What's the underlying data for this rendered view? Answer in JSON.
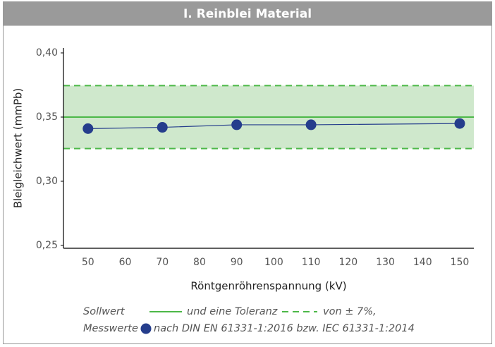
{
  "chart_data": {
    "type": "line",
    "title": "I. Reinblei Material",
    "x_label": "Röntgenröhrenspannung (kV)",
    "y_label": "Bleigleichwert (mmPb)",
    "x": [
      50,
      70,
      90,
      110,
      150
    ],
    "series": [
      {
        "name": "Messwerte",
        "color": "#253d8c",
        "values": [
          0.341,
          0.342,
          0.344,
          0.344,
          0.345
        ]
      }
    ],
    "reference": {
      "name": "Sollwert",
      "value": 0.35,
      "color": "#4cb848"
    },
    "tolerance": {
      "name": "und eine Toleranz",
      "range": [
        0.3255,
        0.3745
      ],
      "fill": "#cfe8cc",
      "color": "#4cb848"
    },
    "legend_notes": [
      "von ± 7%,",
      "nach DIN EN 61331-1:2016 bzw. IEC 61331-1:2014"
    ],
    "xlim": [
      43.4,
      153.8
    ],
    "xticks": [
      50,
      60,
      70,
      80,
      90,
      100,
      110,
      120,
      130,
      140,
      150
    ],
    "ylim": [
      0.25,
      0.4
    ],
    "yticks": [
      {
        "value": 0.25,
        "label": "0,25"
      },
      {
        "value": 0.3,
        "label": "0,30"
      },
      {
        "value": 0.35,
        "label": "0,35"
      },
      {
        "value": 0.4,
        "label": "0,40"
      }
    ]
  }
}
